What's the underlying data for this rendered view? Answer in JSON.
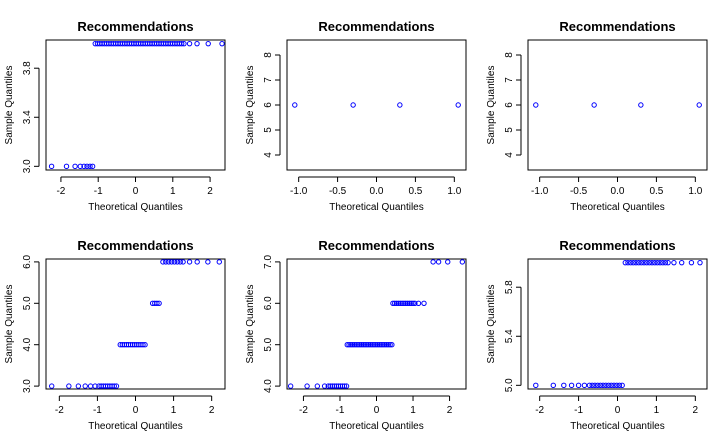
{
  "chart_data": [
    {
      "type": "scatter",
      "title": "Recommendations",
      "xlabel": "Theoretical Quantiles",
      "ylabel": "Sample Quantiles",
      "xlim": [
        -2.4,
        2.4
      ],
      "ylim": [
        2.97,
        4.03
      ],
      "xticks": [
        -2,
        -1,
        0,
        1,
        2
      ],
      "xtick_labels": [
        "-2",
        "-1",
        "0",
        "1",
        "2"
      ],
      "yticks": [
        3.0,
        3.4,
        3.8
      ],
      "ytick_labels": [
        "3.0",
        "3.4",
        "3.8"
      ],
      "runs": [
        {
          "y": 3,
          "x": [
            -2.25,
            -1.85,
            -1.62,
            -1.48,
            -1.38,
            -1.3,
            -1.22,
            -1.15
          ]
        },
        {
          "y": 4,
          "from": -1.08,
          "to": 1.3,
          "n": 40
        },
        {
          "y": 4,
          "x": [
            1.45,
            1.65,
            1.95,
            2.32
          ]
        }
      ]
    },
    {
      "type": "scatter",
      "title": "Recommendations",
      "xlabel": "Theoretical Quantiles",
      "ylabel": "Sample Quantiles",
      "xlim": [
        -1.15,
        1.15
      ],
      "ylim": [
        3.4,
        8.6
      ],
      "xticks": [
        -1.0,
        -0.5,
        0.0,
        0.5,
        1.0
      ],
      "xtick_labels": [
        "-1.0",
        "-0.5",
        "0.0",
        "0.5",
        "1.0"
      ],
      "yticks": [
        4,
        5,
        6,
        7,
        8
      ],
      "ytick_labels": [
        "4",
        "5",
        "6",
        "7",
        "8"
      ],
      "runs": [
        {
          "y": 6,
          "x": [
            -1.05,
            -0.3,
            0.3,
            1.05
          ]
        }
      ]
    },
    {
      "type": "scatter",
      "title": "Recommendations",
      "xlabel": "Theoretical Quantiles",
      "ylabel": "Sample Quantiles",
      "xlim": [
        -1.15,
        1.15
      ],
      "ylim": [
        3.4,
        8.6
      ],
      "xticks": [
        -1.0,
        -0.5,
        0.0,
        0.5,
        1.0
      ],
      "xtick_labels": [
        "-1.0",
        "-0.5",
        "0.0",
        "0.5",
        "1.0"
      ],
      "yticks": [
        4,
        5,
        6,
        7,
        8
      ],
      "ytick_labels": [
        "4",
        "5",
        "6",
        "7",
        "8"
      ],
      "runs": [
        {
          "y": 6,
          "x": [
            -1.05,
            -0.3,
            0.3,
            1.05
          ]
        }
      ]
    },
    {
      "type": "scatter",
      "title": "Recommendations",
      "xlabel": "Theoretical Quantiles",
      "ylabel": "Sample Quantiles",
      "xlim": [
        -2.35,
        2.35
      ],
      "ylim": [
        2.93,
        6.07
      ],
      "xticks": [
        -2,
        -1,
        0,
        1,
        2
      ],
      "xtick_labels": [
        "-2",
        "-1",
        "0",
        "1",
        "2"
      ],
      "yticks": [
        3.0,
        4.0,
        5.0,
        6.0
      ],
      "ytick_labels": [
        "3.0",
        "4.0",
        "5.0",
        "6.0"
      ],
      "runs": [
        {
          "y": 3,
          "x": [
            -2.2,
            -1.75,
            -1.5,
            -1.32,
            -1.18,
            -1.06
          ]
        },
        {
          "y": 3,
          "from": -0.96,
          "to": -0.5,
          "n": 9
        },
        {
          "y": 4,
          "from": -0.4,
          "to": 0.25,
          "n": 13
        },
        {
          "y": 5,
          "from": 0.45,
          "to": 0.62,
          "n": 4
        },
        {
          "y": 6,
          "from": 0.72,
          "to": 1.25,
          "n": 8
        },
        {
          "y": 6,
          "x": [
            1.42,
            1.62,
            1.9,
            2.2
          ]
        }
      ]
    },
    {
      "type": "scatter",
      "title": "Recommendations",
      "xlabel": "Theoretical Quantiles",
      "ylabel": "Sample Quantiles",
      "xlim": [
        -2.45,
        2.45
      ],
      "ylim": [
        3.93,
        7.07
      ],
      "xticks": [
        -2,
        -1,
        0,
        1,
        2
      ],
      "xtick_labels": [
        "-2",
        "-1",
        "0",
        "1",
        "2"
      ],
      "yticks": [
        4.0,
        5.0,
        6.0,
        7.0
      ],
      "ytick_labels": [
        "4.0",
        "5.0",
        "6.0",
        "7.0"
      ],
      "runs": [
        {
          "y": 4,
          "x": [
            -2.35,
            -1.9,
            -1.62,
            -1.42
          ]
        },
        {
          "y": 4,
          "from": -1.32,
          "to": -0.82,
          "n": 10
        },
        {
          "y": 5,
          "from": -0.8,
          "to": 0.42,
          "n": 26
        },
        {
          "y": 6,
          "from": 0.45,
          "to": 1.05,
          "n": 13
        },
        {
          "y": 6,
          "x": [
            1.15,
            1.3
          ]
        },
        {
          "y": 7,
          "x": [
            1.55,
            1.7,
            1.95,
            2.35
          ]
        }
      ]
    },
    {
      "type": "scatter",
      "title": "Recommendations",
      "xlabel": "Theoretical Quantiles",
      "ylabel": "Sample Quantiles",
      "xlim": [
        -2.3,
        2.3
      ],
      "ylim": [
        4.97,
        6.03
      ],
      "xticks": [
        -2,
        -1,
        0,
        1,
        2
      ],
      "xtick_labels": [
        "-2",
        "-1",
        "0",
        "1",
        "2"
      ],
      "yticks": [
        5.0,
        5.4,
        5.8
      ],
      "ytick_labels": [
        "5.0",
        "5.4",
        "5.8"
      ],
      "runs": [
        {
          "y": 5,
          "x": [
            -2.1,
            -1.65,
            -1.38,
            -1.18,
            -1.0,
            -0.85
          ]
        },
        {
          "y": 5,
          "from": -0.72,
          "to": 0.12,
          "n": 13
        },
        {
          "y": 6,
          "from": 0.2,
          "to": 1.3,
          "n": 17
        },
        {
          "y": 6,
          "x": [
            1.45,
            1.65,
            1.9,
            2.12
          ]
        }
      ]
    }
  ]
}
